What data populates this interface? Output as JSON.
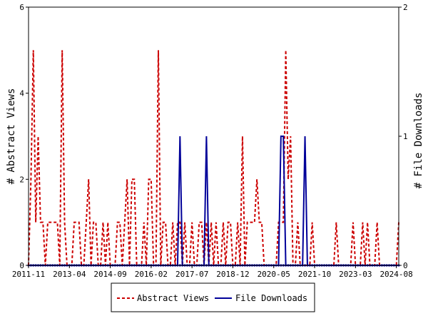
{
  "chart_data": {
    "type": "line",
    "y_left_label": "# Abstract Views",
    "y_right_label": "# File Downloads",
    "y_left_lim": [
      0,
      6
    ],
    "y_right_lim": [
      0,
      2
    ],
    "y_left_ticks": [
      "0",
      "2",
      "4",
      "6"
    ],
    "y_right_ticks": [
      "0",
      "1",
      "2"
    ],
    "x_tick_labels": [
      "2011-11",
      "2013-04",
      "2014-09",
      "2016-02",
      "2017-07",
      "2018-12",
      "2020-05",
      "2021-10",
      "2023-03",
      "2024-08"
    ],
    "x_range_months": [
      0,
      154
    ],
    "x_start": "2011-11",
    "grid": false,
    "legend_position": "bottom-center",
    "series": [
      {
        "name": "Abstract Views",
        "axis": "left",
        "color": "#cc0000",
        "style": "dashed",
        "points": [
          [
            0,
            0
          ],
          [
            1,
            2
          ],
          [
            2,
            5
          ],
          [
            3,
            1
          ],
          [
            4,
            3
          ],
          [
            5,
            1
          ],
          [
            6,
            1
          ],
          [
            7,
            0
          ],
          [
            8,
            1
          ],
          [
            9,
            1
          ],
          [
            10,
            1
          ],
          [
            11,
            1
          ],
          [
            12,
            1
          ],
          [
            13,
            0
          ],
          [
            14,
            5
          ],
          [
            15,
            1
          ],
          [
            16,
            0
          ],
          [
            17,
            0
          ],
          [
            18,
            0
          ],
          [
            19,
            1
          ],
          [
            20,
            1
          ],
          [
            21,
            1
          ],
          [
            22,
            0
          ],
          [
            23,
            0
          ],
          [
            24,
            1
          ],
          [
            25,
            2
          ],
          [
            26,
            0
          ],
          [
            27,
            1
          ],
          [
            28,
            1
          ],
          [
            29,
            0
          ],
          [
            30,
            0
          ],
          [
            31,
            1
          ],
          [
            32,
            0
          ],
          [
            33,
            1
          ],
          [
            34,
            0
          ],
          [
            35,
            0
          ],
          [
            36,
            0
          ],
          [
            37,
            1
          ],
          [
            38,
            1
          ],
          [
            39,
            0
          ],
          [
            40,
            1
          ],
          [
            41,
            2
          ],
          [
            42,
            0
          ],
          [
            43,
            2
          ],
          [
            44,
            2
          ],
          [
            45,
            0
          ],
          [
            46,
            0
          ],
          [
            47,
            0
          ],
          [
            48,
            1
          ],
          [
            49,
            0
          ],
          [
            50,
            2
          ],
          [
            51,
            2
          ],
          [
            52,
            0
          ],
          [
            53,
            0
          ],
          [
            54,
            5
          ],
          [
            55,
            0
          ],
          [
            56,
            1
          ],
          [
            57,
            1
          ],
          [
            58,
            0
          ],
          [
            59,
            0
          ],
          [
            60,
            1
          ],
          [
            61,
            0
          ],
          [
            62,
            1
          ],
          [
            63,
            1
          ],
          [
            64,
            0
          ],
          [
            65,
            1
          ],
          [
            66,
            0
          ],
          [
            67,
            0
          ],
          [
            68,
            1
          ],
          [
            69,
            0
          ],
          [
            70,
            0
          ],
          [
            71,
            1
          ],
          [
            72,
            1
          ],
          [
            73,
            0
          ],
          [
            74,
            1
          ],
          [
            75,
            0
          ],
          [
            76,
            1
          ],
          [
            77,
            0
          ],
          [
            78,
            1
          ],
          [
            79,
            0
          ],
          [
            80,
            0
          ],
          [
            81,
            1
          ],
          [
            82,
            0
          ],
          [
            83,
            1
          ],
          [
            84,
            1
          ],
          [
            85,
            0
          ],
          [
            86,
            0
          ],
          [
            87,
            1
          ],
          [
            88,
            0
          ],
          [
            89,
            3
          ],
          [
            90,
            0
          ],
          [
            91,
            1
          ],
          [
            92,
            1
          ],
          [
            93,
            1
          ],
          [
            94,
            1
          ],
          [
            95,
            2
          ],
          [
            96,
            1
          ],
          [
            97,
            1
          ],
          [
            98,
            0
          ],
          [
            99,
            0
          ],
          [
            100,
            0
          ],
          [
            101,
            0
          ],
          [
            102,
            0
          ],
          [
            103,
            0
          ],
          [
            104,
            1
          ],
          [
            105,
            1
          ],
          [
            106,
            1
          ],
          [
            107,
            5
          ],
          [
            108,
            2
          ],
          [
            109,
            3
          ],
          [
            110,
            0
          ],
          [
            111,
            0
          ],
          [
            112,
            1
          ],
          [
            113,
            0
          ],
          [
            114,
            0
          ],
          [
            115,
            0
          ],
          [
            116,
            0
          ],
          [
            117,
            0
          ],
          [
            118,
            1
          ],
          [
            119,
            0
          ],
          [
            120,
            0
          ],
          [
            121,
            0
          ],
          [
            122,
            0
          ],
          [
            123,
            0
          ],
          [
            124,
            0
          ],
          [
            125,
            0
          ],
          [
            126,
            0
          ],
          [
            127,
            0
          ],
          [
            128,
            1
          ],
          [
            129,
            0
          ],
          [
            130,
            0
          ],
          [
            131,
            0
          ],
          [
            132,
            0
          ],
          [
            133,
            0
          ],
          [
            134,
            0
          ],
          [
            135,
            1
          ],
          [
            136,
            0
          ],
          [
            137,
            0
          ],
          [
            138,
            0
          ],
          [
            139,
            1
          ],
          [
            140,
            0
          ],
          [
            141,
            1
          ],
          [
            142,
            0
          ],
          [
            143,
            0
          ],
          [
            144,
            0
          ],
          [
            145,
            1
          ],
          [
            146,
            0
          ],
          [
            147,
            0
          ],
          [
            148,
            0
          ],
          [
            149,
            0
          ],
          [
            150,
            0
          ],
          [
            151,
            0
          ],
          [
            152,
            0
          ],
          [
            153,
            0
          ],
          [
            154,
            1
          ]
        ]
      },
      {
        "name": "File Downloads",
        "axis": "right",
        "color": "#000099",
        "style": "solid",
        "points": [
          [
            0,
            0
          ],
          [
            62,
            0
          ],
          [
            63,
            1
          ],
          [
            64,
            0
          ],
          [
            73,
            0
          ],
          [
            74,
            1
          ],
          [
            75,
            0
          ],
          [
            104,
            0
          ],
          [
            105,
            1
          ],
          [
            106,
            1
          ],
          [
            107,
            0
          ],
          [
            114,
            0
          ],
          [
            115,
            1
          ],
          [
            116,
            0
          ],
          [
            154,
            0
          ]
        ]
      }
    ]
  }
}
